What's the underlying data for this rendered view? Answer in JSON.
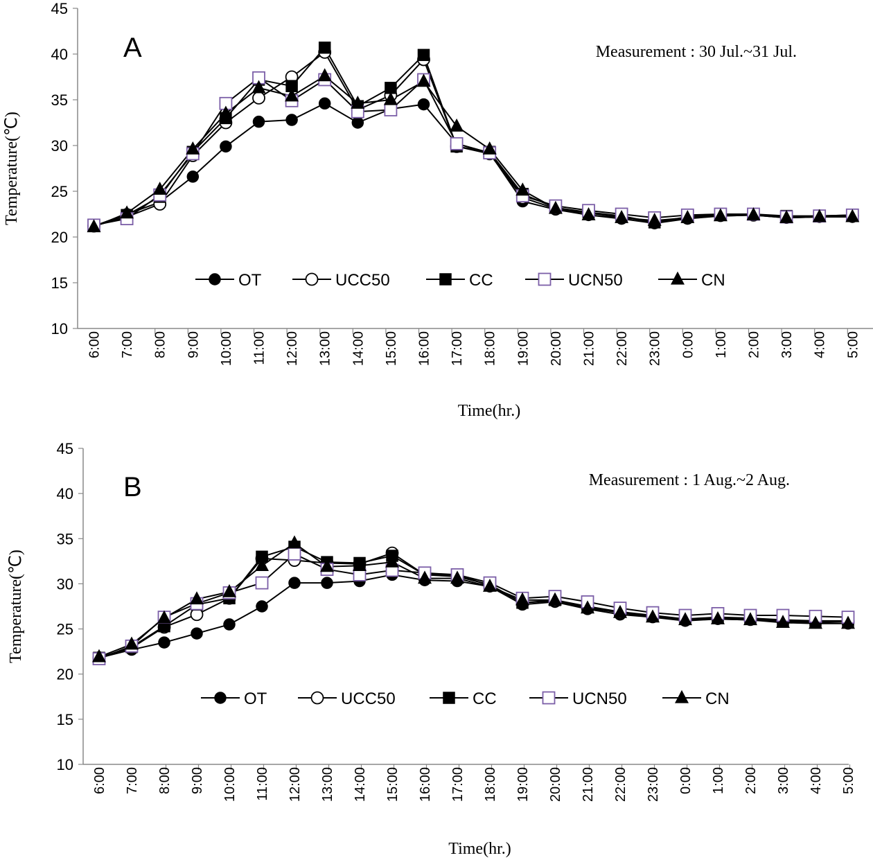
{
  "colors": {
    "line": "#000000",
    "ucn50_marker": "#7b5ea7",
    "open_fill": "#ffffff"
  },
  "chart_data": [
    {
      "type": "line",
      "panel": "A",
      "note": "Measurement : 30 Jul.~31 Jul.",
      "xlabel": "Time(hr.)",
      "ylabel": "Temperature(℃)",
      "ylim": [
        10,
        45
      ],
      "yticks": [
        "10",
        "15",
        "20",
        "25",
        "30",
        "35",
        "40",
        "45"
      ],
      "categories": [
        "6:00",
        "7:00",
        "8:00",
        "9:00",
        "10:00",
        "11:00",
        "12:00",
        "13:00",
        "14:00",
        "15:00",
        "16:00",
        "17:00",
        "18:00",
        "19:00",
        "20:00",
        "21:00",
        "22:00",
        "23:00",
        "0:00",
        "1:00",
        "2:00",
        "3:00",
        "4:00",
        "5:00"
      ],
      "legend": "inside-middle",
      "grid": false,
      "series": [
        {
          "name": "OT",
          "marker": "filled-circle",
          "values": [
            21.2,
            22.5,
            23.8,
            26.6,
            29.9,
            32.6,
            32.8,
            34.6,
            32.5,
            34.0,
            34.5,
            30.2,
            29.2,
            23.9,
            23.0,
            22.4,
            22.0,
            21.5,
            22.0,
            22.3,
            22.4,
            22.1,
            22.2,
            22.2
          ]
        },
        {
          "name": "UCC50",
          "marker": "open-circle",
          "values": [
            21.2,
            22.2,
            23.6,
            28.9,
            32.5,
            35.2,
            37.5,
            40.2,
            33.9,
            35.5,
            39.4,
            29.9,
            29.1,
            24.3,
            23.1,
            22.6,
            22.2,
            21.6,
            22.1,
            22.4,
            22.4,
            22.2,
            22.3,
            22.3
          ]
        },
        {
          "name": "CC",
          "marker": "filled-square",
          "values": [
            21.2,
            22.4,
            24.4,
            29.3,
            33.0,
            37.2,
            36.5,
            40.7,
            34.3,
            36.3,
            39.9,
            29.9,
            29.3,
            24.7,
            23.2,
            22.7,
            22.3,
            21.6,
            22.2,
            22.5,
            22.5,
            22.3,
            22.3,
            22.4
          ]
        },
        {
          "name": "UCN50",
          "marker": "open-square",
          "values": [
            21.3,
            22.0,
            24.6,
            29.1,
            34.6,
            37.4,
            34.9,
            37.2,
            33.7,
            33.9,
            37.2,
            30.2,
            29.2,
            24.5,
            23.4,
            22.9,
            22.5,
            22.1,
            22.4,
            22.5,
            22.5,
            22.2,
            22.3,
            22.4
          ]
        },
        {
          "name": "CN",
          "marker": "filled-triangle",
          "values": [
            21.1,
            22.6,
            25.2,
            29.6,
            33.5,
            36.3,
            35.4,
            37.6,
            34.6,
            35.0,
            37.0,
            32.1,
            29.6,
            25.1,
            23.1,
            22.4,
            22.1,
            21.8,
            22.1,
            22.3,
            22.4,
            22.1,
            22.2,
            22.2
          ]
        }
      ]
    },
    {
      "type": "line",
      "panel": "B",
      "note": "Measurement : 1 Aug.~2 Aug.",
      "xlabel": "Time(hr.)",
      "ylabel": "Temperature(℃)",
      "ylim": [
        10,
        45
      ],
      "yticks": [
        "10",
        "15",
        "20",
        "25",
        "30",
        "35",
        "40",
        "45"
      ],
      "categories": [
        "6:00",
        "7:00",
        "8:00",
        "9:00",
        "10:00",
        "11:00",
        "12:00",
        "13:00",
        "14:00",
        "15:00",
        "16:00",
        "17:00",
        "18:00",
        "19:00",
        "20:00",
        "21:00",
        "22:00",
        "23:00",
        "0:00",
        "1:00",
        "2:00",
        "3:00",
        "4:00",
        "5:00"
      ],
      "legend": "inside-middle",
      "grid": false,
      "series": [
        {
          "name": "OT",
          "marker": "filled-circle",
          "values": [
            21.8,
            22.7,
            23.5,
            24.5,
            25.5,
            27.5,
            30.1,
            30.1,
            30.3,
            31.0,
            30.4,
            30.3,
            29.7,
            27.7,
            28.0,
            27.2,
            26.6,
            26.3,
            25.9,
            26.1,
            26.0,
            25.8,
            25.7,
            25.6
          ]
        },
        {
          "name": "UCC50",
          "marker": "open-circle",
          "values": [
            21.8,
            22.9,
            25.2,
            26.6,
            28.4,
            32.8,
            32.6,
            32.3,
            32.2,
            33.4,
            31.0,
            31.0,
            29.8,
            27.9,
            28.1,
            27.4,
            26.8,
            26.4,
            26.0,
            26.2,
            26.1,
            25.9,
            25.8,
            25.8
          ]
        },
        {
          "name": "CC",
          "marker": "filled-square",
          "values": [
            21.8,
            23.0,
            25.3,
            27.7,
            28.4,
            33.0,
            34.1,
            32.4,
            32.3,
            33.1,
            31.0,
            30.8,
            29.9,
            27.9,
            28.2,
            27.5,
            26.9,
            26.5,
            26.1,
            26.3,
            26.2,
            26.0,
            25.9,
            25.9
          ]
        },
        {
          "name": "UCN50",
          "marker": "open-square",
          "values": [
            21.7,
            23.1,
            26.3,
            27.8,
            29.0,
            30.1,
            33.3,
            31.6,
            31.0,
            31.5,
            31.2,
            31.0,
            30.1,
            28.4,
            28.6,
            28.0,
            27.3,
            26.8,
            26.5,
            26.7,
            26.5,
            26.5,
            26.4,
            26.3
          ]
        },
        {
          "name": "CN",
          "marker": "filled-triangle",
          "values": [
            21.9,
            23.3,
            26.2,
            28.3,
            29.1,
            32.0,
            34.5,
            31.9,
            32.0,
            32.4,
            30.6,
            30.6,
            29.7,
            28.2,
            28.2,
            27.3,
            26.8,
            26.3,
            26.0,
            26.1,
            26.0,
            25.7,
            25.6,
            25.6
          ]
        }
      ]
    }
  ]
}
